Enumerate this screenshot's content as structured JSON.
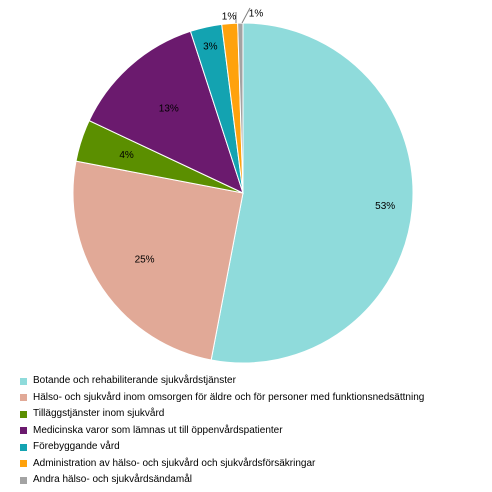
{
  "chart_data": {
    "type": "pie",
    "start_angle_deg": 0,
    "direction": "clockwise",
    "slices": [
      {
        "name": "Botande och rehabiliterande sjukvårdstjänster",
        "value": 53,
        "label": "53%",
        "color": "#8fdbdb"
      },
      {
        "name": "Hälso- och sjukvård inom omsorgen för äldre och för personer med funktionsnedsättning",
        "value": 25,
        "label": "25%",
        "color": "#e1a997"
      },
      {
        "name": "Tilläggstjänster inom sjukvård",
        "value": 4,
        "label": "4%",
        "color": "#5b8f00"
      },
      {
        "name": "Medicinska varor som lämnas ut till öppenvårdspatienter",
        "value": 13,
        "label": "13%",
        "color": "#6b1a6e"
      },
      {
        "name": "Förebyggande vård",
        "value": 3,
        "label": "3%",
        "color": "#13a3b1"
      },
      {
        "name": "Administration av hälso- och sjukvård och sjukvårdsförsäkringar",
        "value": 1.5,
        "label": "1%",
        "color": "#ffa20c"
      },
      {
        "name": "Andra hälso- och sjukvårdsändamål",
        "value": 0.5,
        "label": "1%",
        "color": "#a3a3a3"
      }
    ],
    "legend_position": "bottom"
  }
}
